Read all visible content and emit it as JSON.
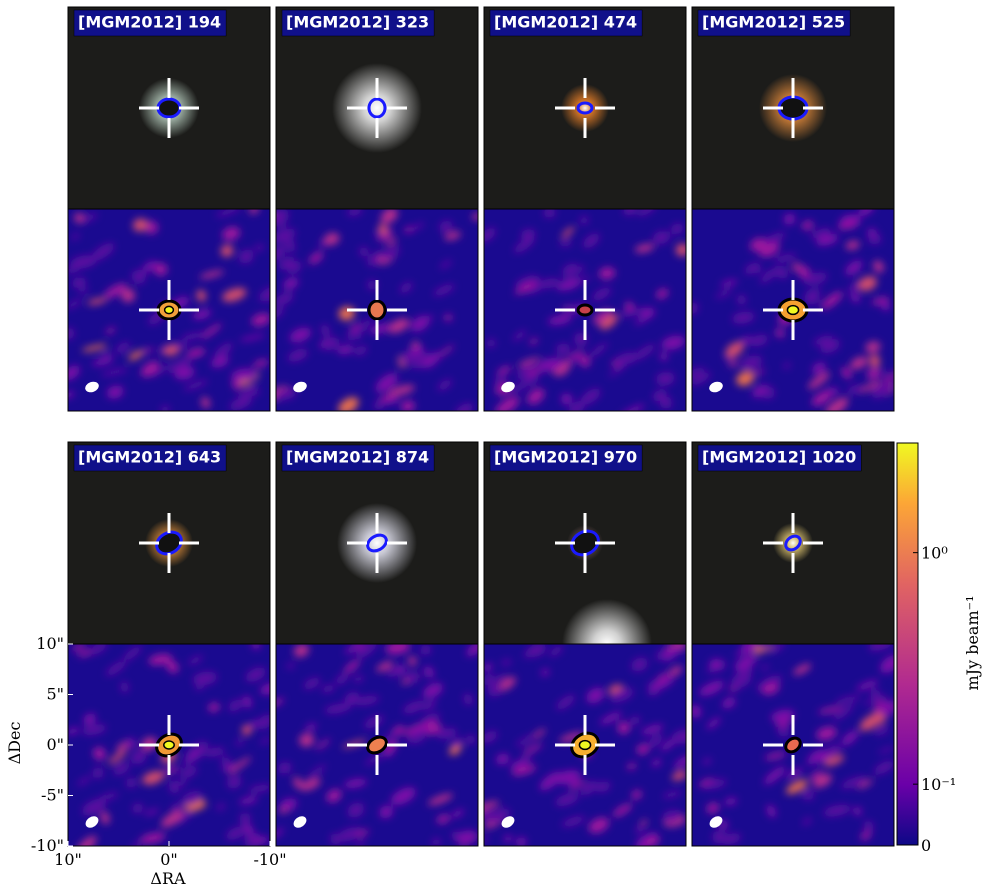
{
  "panels": [
    {
      "label": "[MGM2012] 194"
    },
    {
      "label": "[MGM2012] 323"
    },
    {
      "label": "[MGM2012] 474"
    },
    {
      "label": "[MGM2012] 525"
    },
    {
      "label": "[MGM2012] 643"
    },
    {
      "label": "[MGM2012] 874"
    },
    {
      "label": "[MGM2012] 970"
    },
    {
      "label": "[MGM2012] 1020"
    }
  ],
  "axes": {
    "xlabel": "ΔRA",
    "ylabel": "ΔDec",
    "xlim": [
      10,
      -10
    ],
    "ylim": [
      -10,
      10
    ],
    "xticks": [
      {
        "value": 10,
        "label": "10\""
      },
      {
        "value": 0,
        "label": "0\""
      },
      {
        "value": -10,
        "label": "-10\""
      }
    ],
    "yticks": [
      {
        "value": 10,
        "label": "10\""
      },
      {
        "value": 5,
        "label": "5\""
      },
      {
        "value": 0,
        "label": "0\""
      },
      {
        "value": -5,
        "label": "-5\""
      },
      {
        "value": -10,
        "label": "-10\""
      }
    ]
  },
  "colorbar": {
    "label": "mJy beam⁻¹",
    "scale": "asinh",
    "lim": [
      0,
      2.4
    ],
    "ticks": [
      {
        "value": 0,
        "label": "0"
      },
      {
        "value": 0.1,
        "label": "10⁻¹"
      },
      {
        "value": 1,
        "label": "10⁰"
      }
    ]
  }
}
